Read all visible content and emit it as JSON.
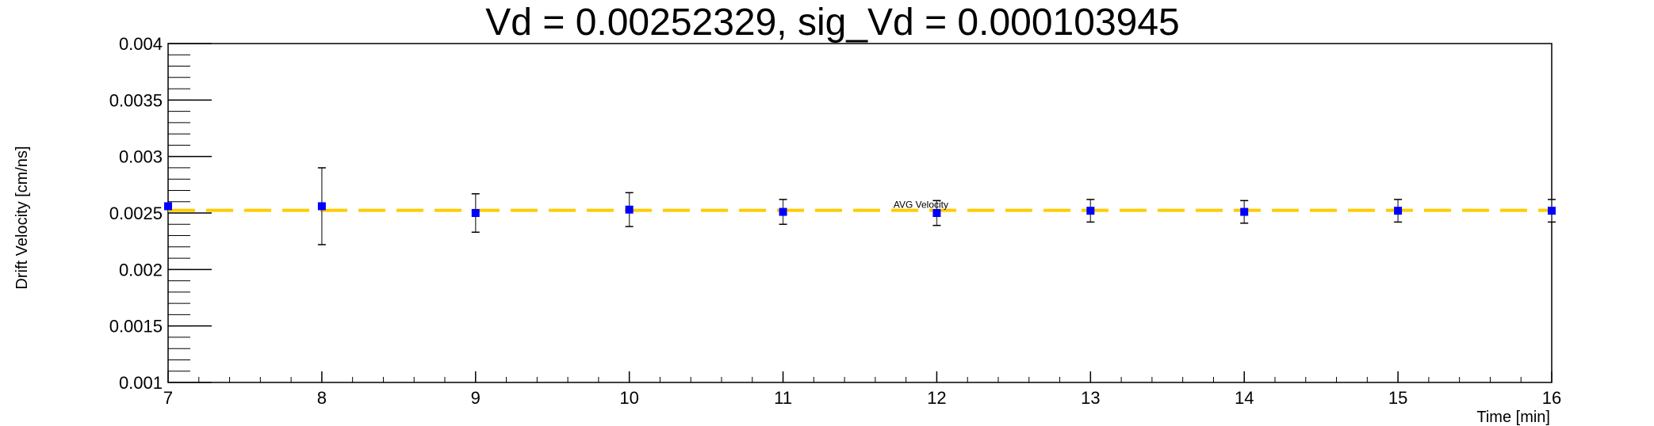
{
  "chart_data": {
    "type": "scatter",
    "title": "Vd = 0.00252329, sig_Vd = 0.000103945",
    "xlabel": "Time [min]",
    "ylabel": "Drift Velocity [cm/ns]",
    "xlim": [
      7,
      16
    ],
    "ylim": [
      0.001,
      0.004
    ],
    "x_ticks": [
      "7",
      "8",
      "9",
      "10",
      "11",
      "12",
      "13",
      "14",
      "15",
      "16"
    ],
    "y_ticks": [
      "0.001",
      "0.0015",
      "0.002",
      "0.0025",
      "0.003",
      "0.0035",
      "0.004"
    ],
    "grid": false,
    "series": [
      {
        "color": "#0000ff",
        "marker": "square",
        "points": [
          {
            "x": 7,
            "y": 0.00256,
            "err": 0.0
          },
          {
            "x": 8,
            "y": 0.00256,
            "err": 0.00034
          },
          {
            "x": 9,
            "y": 0.0025,
            "err": 0.00017
          },
          {
            "x": 10,
            "y": 0.00253,
            "err": 0.00015
          },
          {
            "x": 11,
            "y": 0.00251,
            "err": 0.00011
          },
          {
            "x": 12,
            "y": 0.0025,
            "err": 0.00011
          },
          {
            "x": 13,
            "y": 0.00252,
            "err": 0.0001
          },
          {
            "x": 14,
            "y": 0.00251,
            "err": 0.0001
          },
          {
            "x": 15,
            "y": 0.00252,
            "err": 0.0001
          },
          {
            "x": 16,
            "y": 0.00252,
            "err": 0.0001
          }
        ]
      }
    ],
    "reference_line": {
      "label": "AVG Velocity",
      "y": 0.00252329,
      "color": "#ffcc00",
      "style": "dashed",
      "label_x": 12
    }
  }
}
